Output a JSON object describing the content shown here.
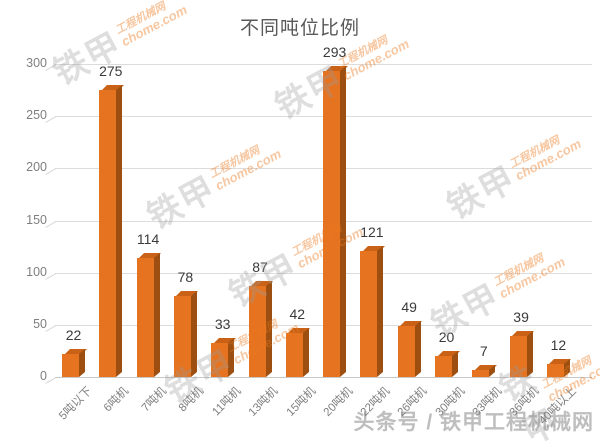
{
  "chart_data": {
    "type": "bar",
    "title": "不同吨位比例",
    "categories": [
      "5吨以下",
      "6吨机",
      "7吨机",
      "8吨机",
      "11吨机",
      "13吨机",
      "15吨机",
      "20吨机",
      "22吨机",
      "26吨机",
      "30吨机",
      "33吨机",
      "36吨机",
      "40吨以上"
    ],
    "values": [
      22,
      275,
      114,
      78,
      33,
      87,
      42,
      293,
      121,
      49,
      20,
      7,
      39,
      12
    ],
    "xlabel": "",
    "ylabel": "",
    "ylim": [
      0,
      300
    ],
    "yticks": [
      0,
      50,
      100,
      150,
      200,
      250,
      300
    ],
    "grid": true,
    "legend": false,
    "style": "3d-bar",
    "colors": {
      "bar_front": "#E5731F",
      "bar_side": "#9C4F10",
      "bar_top": "#C96217",
      "gridline": "#DCDCDC",
      "axis_text": "#7F7F7F",
      "value_text": "#3A3A3A",
      "title_text": "#595959"
    }
  },
  "watermark": {
    "brand": "铁甲",
    "line1": "工程机械网",
    "line2": "chome.com"
  },
  "attribution": "头条号 / 铁甲工程机械网"
}
